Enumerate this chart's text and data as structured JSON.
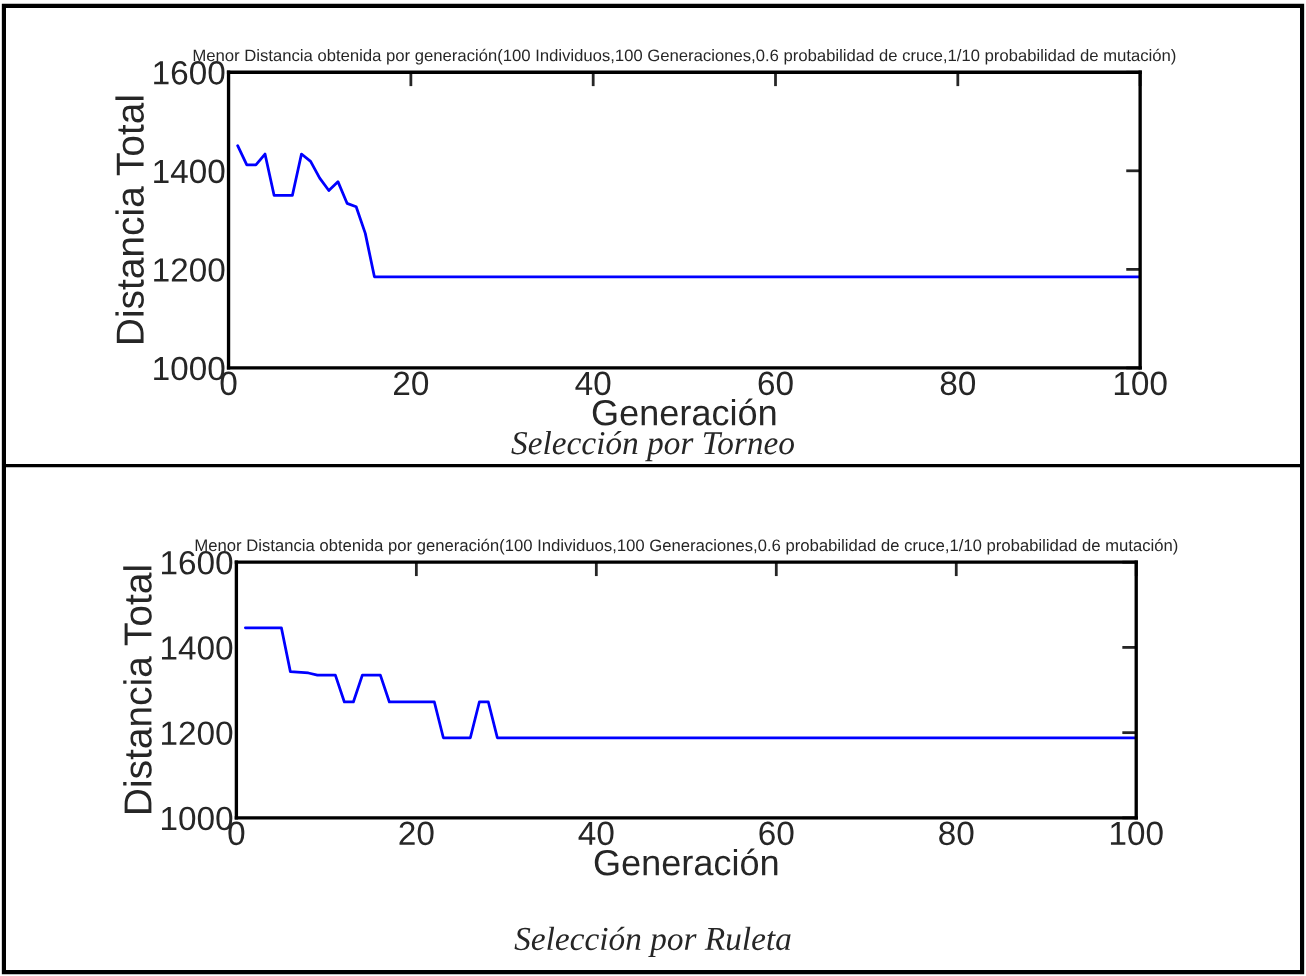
{
  "chart_data": [
    {
      "type": "line",
      "title": "Menor Distancia obtenida por generación(100 Individuos,100 Generaciones,0.6 probabilidad de cruce,1/10 probabilidad de mutación)",
      "xlabel": "Generación",
      "ylabel": "Distancia Total",
      "annotations": [
        "Selección por Torneo"
      ],
      "series": [
        {
          "color": "#0000ff",
          "x": [
            1,
            2,
            3,
            4,
            5,
            7,
            8,
            9,
            10,
            11,
            12,
            13,
            14,
            15,
            16,
            100
          ],
          "values": [
            1451,
            1412,
            1412,
            1434,
            1350,
            1350,
            1434,
            1419,
            1385,
            1360,
            1378,
            1334,
            1327,
            1273,
            1185,
            1185
          ]
        }
      ],
      "xlim": [
        0,
        100
      ],
      "xticks": [
        0,
        20,
        40,
        60,
        80,
        100
      ],
      "ylim": [
        1000,
        1600
      ],
      "yticks": [
        1000,
        1200,
        1400,
        1600
      ],
      "grid": false,
      "legend": false
    },
    {
      "type": "line",
      "title": "Menor Distancia obtenida por generación(100 Individuos,100 Generaciones,0.6 probabilidad de cruce,1/10 probabilidad de mutación)",
      "xlabel": "Generación",
      "ylabel": "Distancia Total",
      "annotations": [
        "Selección por Ruleta"
      ],
      "series": [
        {
          "color": "#0000ff",
          "x": [
            1,
            5,
            6,
            8,
            9,
            11,
            12,
            13,
            14,
            16,
            17,
            22,
            23,
            26,
            27,
            28,
            29,
            100
          ],
          "values": [
            1446,
            1446,
            1343,
            1340,
            1335,
            1335,
            1272,
            1272,
            1335,
            1335,
            1272,
            1272,
            1188,
            1188,
            1272,
            1272,
            1188,
            1188
          ]
        }
      ],
      "xlim": [
        0,
        100
      ],
      "xticks": [
        0,
        20,
        40,
        60,
        80,
        100
      ],
      "ylim": [
        1000,
        1600
      ],
      "yticks": [
        1000,
        1200,
        1400,
        1600
      ],
      "grid": false,
      "legend": false
    }
  ]
}
